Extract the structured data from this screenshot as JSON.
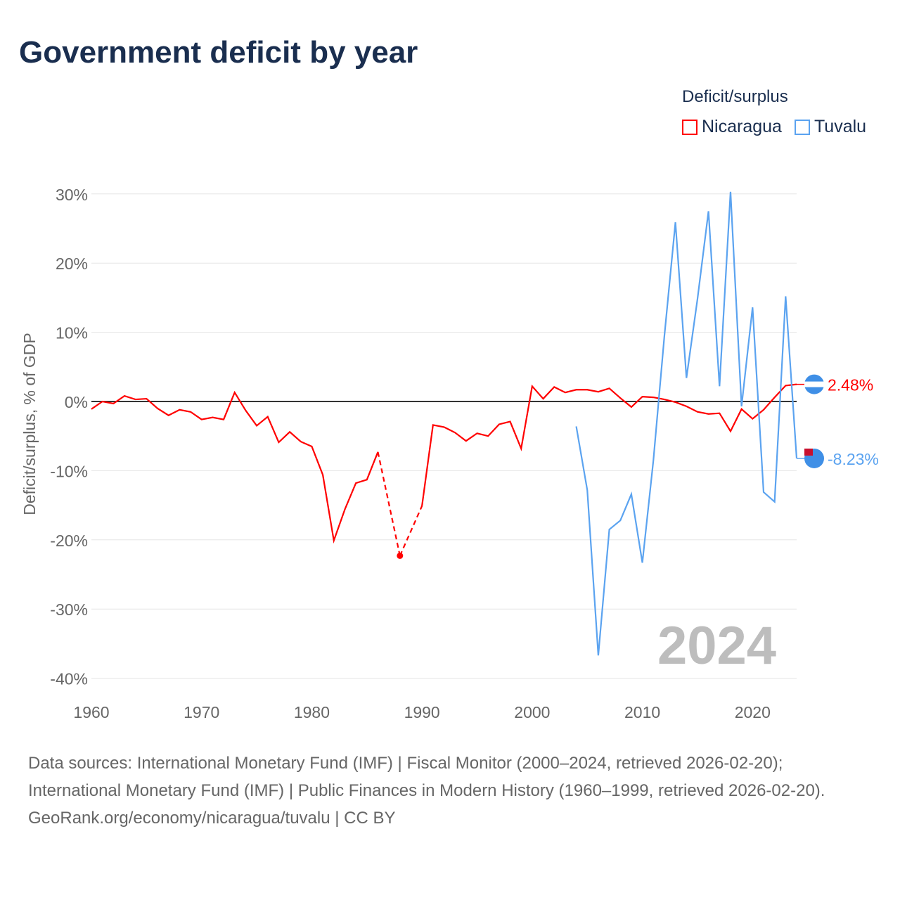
{
  "title": "Government deficit by year",
  "legend": {
    "title": "Deficit/surplus",
    "items": [
      "Nicaragua",
      "Tuvalu"
    ]
  },
  "year_watermark": "2024",
  "source": {
    "line1": "Data sources: International Monetary Fund (IMF) | Fiscal Monitor (2000–2024, retrieved 2026-02-20); International Monetary Fund (IMF) | Public Finances in Modern History (1960–1999, retrieved 2026-02-20).",
    "line2": "GeoRank.org/economy/nicaragua/tuvalu | CC BY"
  },
  "chart_data": {
    "type": "line",
    "title": "Government deficit by year",
    "xlabel": "",
    "ylabel": "Deficit/surplus, % of GDP",
    "xlim": [
      1960,
      2024
    ],
    "ylim": [
      -40,
      30
    ],
    "xticks": [
      "1960",
      "1970",
      "1980",
      "1990",
      "2000",
      "2010",
      "2020"
    ],
    "yticks": [
      "30%",
      "20%",
      "10%",
      "0%",
      "-10%",
      "-20%",
      "-30%",
      "-40%"
    ],
    "series": [
      {
        "name": "Nicaragua",
        "color": "#ff0000",
        "end_label": "2.48%",
        "start": 1960,
        "values": [
          -1.1,
          0,
          -0.3,
          0.8,
          0.3,
          0.4,
          -1,
          -2.0,
          -1.2,
          -1.5,
          -2.6,
          -2.3,
          -2.6,
          1.3,
          -1.3,
          -3.5,
          -2.2,
          -5.9,
          -4.4,
          -5.8,
          -6.5,
          -10.6,
          -20.1,
          -15.6,
          -11.8,
          -11.3,
          -7.3,
          null,
          -22.3,
          null,
          -15.1,
          -3.4,
          -3.7,
          -4.5,
          -5.7,
          -4.6,
          -5.0,
          -3.3,
          -2.9,
          -6.8,
          2.2,
          0.4,
          2.1,
          1.3,
          1.7,
          1.7,
          1.4,
          1.9,
          0.5,
          -0.8,
          0.7,
          0.6,
          0.3,
          -0.1,
          -0.7,
          -1.5,
          -1.8,
          -1.7,
          -4.3,
          -1.1,
          -2.5,
          -1.2,
          0.6,
          2.3,
          2.48
        ]
      },
      {
        "name": "Tuvalu",
        "color": "#5ba3f0",
        "end_label": "-8.23%",
        "start": 2004,
        "values": [
          -3.6,
          -12.8,
          -36.7,
          -18.5,
          -17.2,
          -13.4,
          -23.3,
          -8.5,
          9.5,
          25.9,
          3.4,
          14.8,
          27.5,
          2.2,
          30.3,
          -0.7,
          13.6,
          -13.1,
          -14.5,
          15.2,
          -8.23
        ]
      }
    ]
  }
}
